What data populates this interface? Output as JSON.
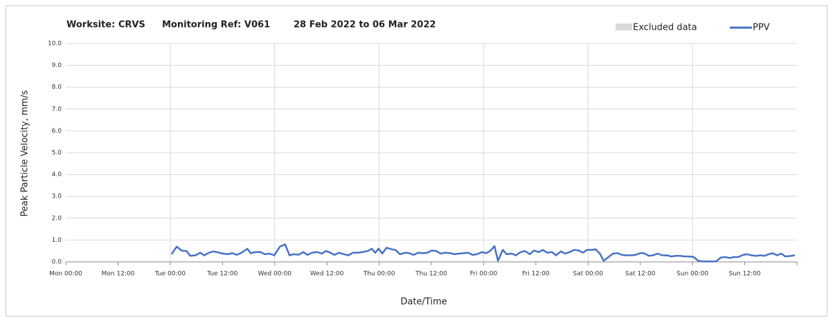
{
  "chart_data": {
    "type": "line",
    "title_parts": [
      "Worksite: CRVS",
      "Monitoring Ref: V061",
      "28 Feb 2022 to 06 Mar 2022"
    ],
    "xlabel": "Date/Time",
    "ylabel": "Peak Particle Velocity, mm/s",
    "excluded": {
      "name": "Excluded data",
      "color": "#d9d9d9"
    },
    "xlim": [
      0,
      168
    ],
    "xticks": [
      {
        "value": 0,
        "label": "Mon 00:00"
      },
      {
        "value": 12,
        "label": "Mon 12:00"
      },
      {
        "value": 24,
        "label": "Tue 00:00"
      },
      {
        "value": 36,
        "label": "Tue 12:00"
      },
      {
        "value": 48,
        "label": "Wed 00:00"
      },
      {
        "value": 60,
        "label": "Wed 12:00"
      },
      {
        "value": 72,
        "label": "Thu 00:00"
      },
      {
        "value": 84,
        "label": "Thu 12:00"
      },
      {
        "value": 96,
        "label": "Fri 00:00"
      },
      {
        "value": 108,
        "label": "Fri 12:00"
      },
      {
        "value": 120,
        "label": "Sat 00:00"
      },
      {
        "value": 132,
        "label": "Sat 12:00"
      },
      {
        "value": 144,
        "label": "Sun 00:00"
      },
      {
        "value": 156,
        "label": "Sun 12:00"
      }
    ],
    "ylim": [
      0,
      10
    ],
    "yticks": [
      {
        "value": 0,
        "label": "0.0"
      },
      {
        "value": 1,
        "label": "1.0"
      },
      {
        "value": 2,
        "label": "2.0"
      },
      {
        "value": 3,
        "label": "3.0"
      },
      {
        "value": 4,
        "label": "4.0"
      },
      {
        "value": 5,
        "label": "5.0"
      },
      {
        "value": 6,
        "label": "6.0"
      },
      {
        "value": 7,
        "label": "7.0"
      },
      {
        "value": 8,
        "label": "8.0"
      },
      {
        "value": 9,
        "label": "9.0"
      },
      {
        "value": 10,
        "label": "10.0"
      }
    ],
    "grid": true,
    "legend": "top-right",
    "series": [
      {
        "name": "PPV",
        "color": "#4472c4",
        "x": [
          24.3,
          25.5,
          26.6,
          27.7,
          28.6,
          29.8,
          30.9,
          31.8,
          32.9,
          34.0,
          35.2,
          36.1,
          37.2,
          38.3,
          39.3,
          40.4,
          41.7,
          42.5,
          43.6,
          44.7,
          45.7,
          46.8,
          47.9,
          49.2,
          50.4,
          51.4,
          52.3,
          53.5,
          54.6,
          55.5,
          56.6,
          57.8,
          58.9,
          59.7,
          60.8,
          61.7,
          62.8,
          63.9,
          64.9,
          66.0,
          67.1,
          68.2,
          69.4,
          70.3,
          71.1,
          71.9,
          72.7,
          73.7,
          74.8,
          75.7,
          76.8,
          78.0,
          78.9,
          79.9,
          81.0,
          82.1,
          83.1,
          84.0,
          85.1,
          86.1,
          87.2,
          88.3,
          89.3,
          90.4,
          91.5,
          92.4,
          93.5,
          94.5,
          95.6,
          96.6,
          97.5,
          98.5,
          99.3,
          100.4,
          101.3,
          102.5,
          103.4,
          104.5,
          105.5,
          106.6,
          107.6,
          108.7,
          109.6,
          110.6,
          111.7,
          112.6,
          113.8,
          114.7,
          115.8,
          116.8,
          117.9,
          118.8,
          119.8,
          120.9,
          121.7,
          122.7,
          123.6,
          124.7,
          125.7,
          126.8,
          127.8,
          128.9,
          129.8,
          130.9,
          131.9,
          132.8,
          134.0,
          134.9,
          136.0,
          137.0,
          138.1,
          139.1,
          140.2,
          141.1,
          142.2,
          143.2,
          144.3,
          145.3,
          146.4,
          147.3,
          148.4,
          149.4,
          150.5,
          151.5,
          152.6,
          153.5,
          154.5,
          155.6,
          156.6,
          157.5,
          158.6,
          159.6,
          160.5,
          161.5,
          162.4,
          163.4,
          164.4,
          165.3,
          166.4,
          167.5
        ],
        "values": [
          0.35,
          0.7,
          0.52,
          0.5,
          0.28,
          0.3,
          0.42,
          0.3,
          0.42,
          0.48,
          0.42,
          0.38,
          0.35,
          0.4,
          0.32,
          0.42,
          0.6,
          0.4,
          0.45,
          0.45,
          0.35,
          0.38,
          0.3,
          0.7,
          0.8,
          0.3,
          0.35,
          0.33,
          0.45,
          0.32,
          0.42,
          0.45,
          0.38,
          0.5,
          0.42,
          0.32,
          0.42,
          0.35,
          0.3,
          0.42,
          0.42,
          0.45,
          0.5,
          0.6,
          0.42,
          0.6,
          0.38,
          0.65,
          0.58,
          0.55,
          0.35,
          0.42,
          0.4,
          0.32,
          0.42,
          0.4,
          0.42,
          0.52,
          0.5,
          0.38,
          0.42,
          0.4,
          0.35,
          0.38,
          0.4,
          0.42,
          0.32,
          0.35,
          0.45,
          0.4,
          0.5,
          0.72,
          0.05,
          0.55,
          0.35,
          0.38,
          0.3,
          0.45,
          0.5,
          0.35,
          0.52,
          0.45,
          0.55,
          0.42,
          0.45,
          0.3,
          0.48,
          0.38,
          0.45,
          0.55,
          0.52,
          0.42,
          0.55,
          0.55,
          0.58,
          0.38,
          0.05,
          0.22,
          0.38,
          0.4,
          0.32,
          0.3,
          0.3,
          0.32,
          0.4,
          0.4,
          0.28,
          0.3,
          0.38,
          0.3,
          0.3,
          0.25,
          0.28,
          0.28,
          0.25,
          0.25,
          0.22,
          0.05,
          0.02,
          0.02,
          0.02,
          0.02,
          0.2,
          0.22,
          0.18,
          0.22,
          0.22,
          0.32,
          0.35,
          0.3,
          0.28,
          0.3,
          0.28,
          0.35,
          0.4,
          0.3,
          0.38,
          0.25,
          0.27,
          0.3
        ]
      }
    ]
  }
}
